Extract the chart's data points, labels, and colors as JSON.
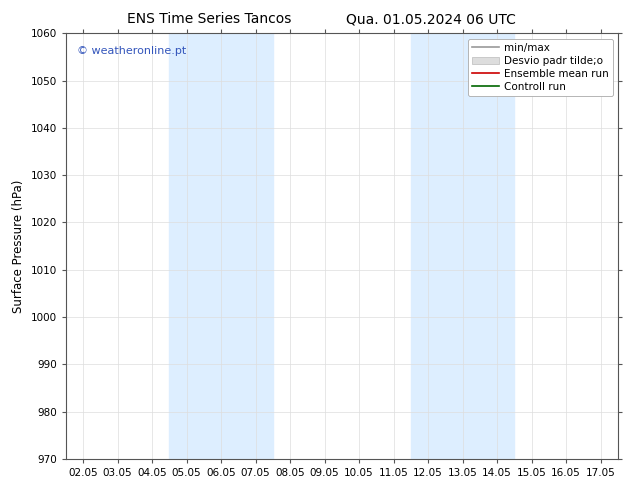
{
  "title_left": "ENS Time Series Tancos",
  "title_right": "Qua. 01.05.2024 06 UTC",
  "ylabel": "Surface Pressure (hPa)",
  "ylim": [
    970,
    1060
  ],
  "yticks": [
    970,
    980,
    990,
    1000,
    1010,
    1020,
    1030,
    1040,
    1050,
    1060
  ],
  "xtick_labels": [
    "02.05",
    "03.05",
    "04.05",
    "05.05",
    "06.05",
    "07.05",
    "08.05",
    "09.05",
    "10.05",
    "11.05",
    "12.05",
    "13.05",
    "14.05",
    "15.05",
    "16.05",
    "17.05"
  ],
  "shaded_regions": [
    {
      "xstart": 3,
      "xend": 5,
      "color": "#ddeeff"
    },
    {
      "xstart": 10,
      "xend": 12,
      "color": "#ddeeff"
    }
  ],
  "legend_entries": [
    {
      "label": "min/max",
      "color": "#999999",
      "lw": 1.2
    },
    {
      "label": "Desvio padr tilde;o",
      "color": "#cccccc",
      "lw": 5
    },
    {
      "label": "Ensemble mean run",
      "color": "#cc0000",
      "lw": 1.2
    },
    {
      "label": "Controll run",
      "color": "#006600",
      "lw": 1.2
    }
  ],
  "watermark_text": "© weatheronline.pt",
  "watermark_color": "#3355bb",
  "background_color": "#ffffff",
  "plot_bg_color": "#ffffff",
  "grid_color": "#dddddd",
  "title_fontsize": 10,
  "tick_fontsize": 7.5,
  "ylabel_fontsize": 8.5,
  "legend_fontsize": 7.5,
  "n_xticks": 16
}
